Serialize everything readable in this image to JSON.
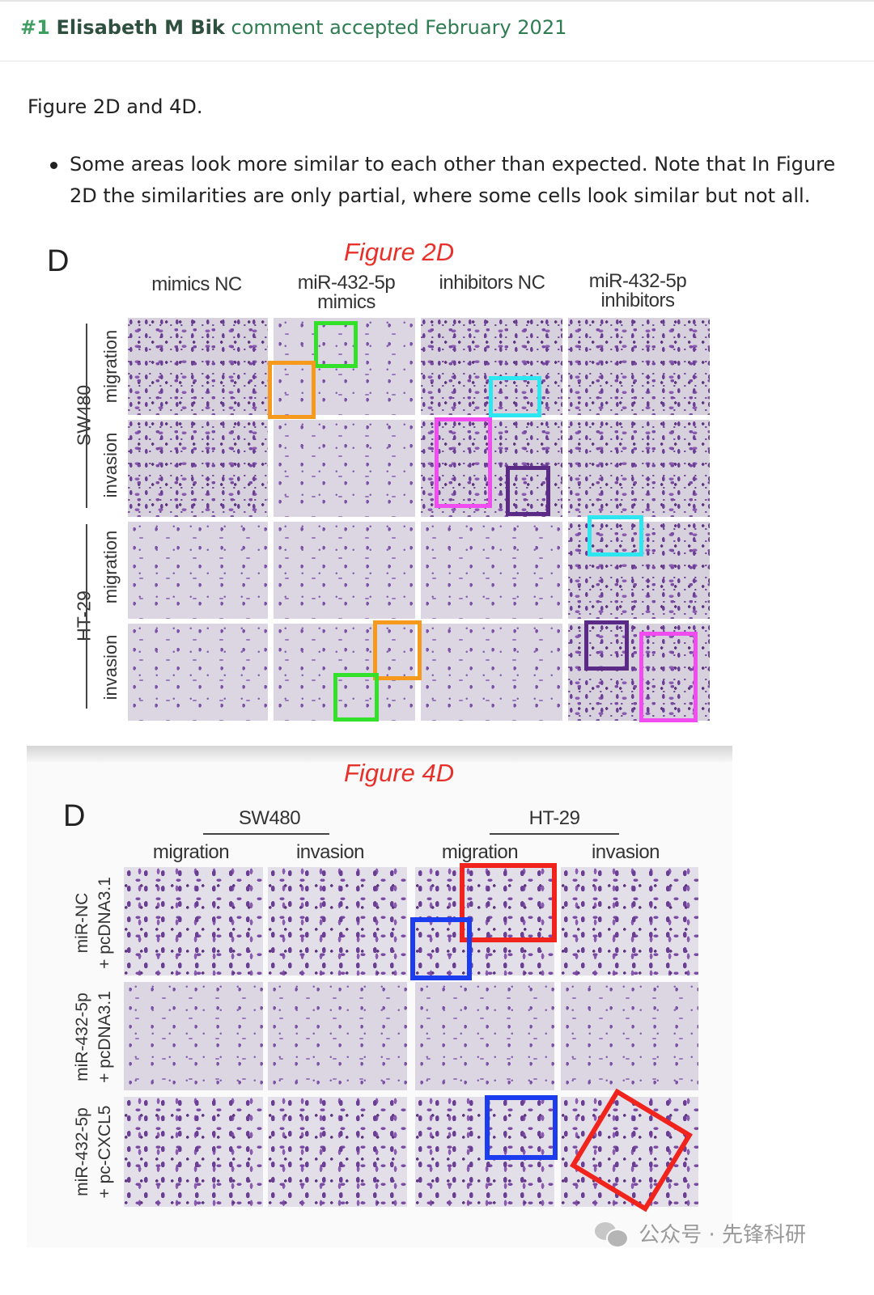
{
  "comment": {
    "number": "#1",
    "author": "Elisabeth M Bik",
    "status": "comment accepted February 2021"
  },
  "intro": "Figure 2D and 4D.",
  "bullet": "Some areas look more similar to each other than expected. Note that In Figure 2D the similarities are only partial, where some cells look similar but not all.",
  "figure2d": {
    "title": "Figure 2D",
    "panel_letter": "D",
    "columns": [
      {
        "line1": "mimics NC",
        "line2": ""
      },
      {
        "line1": "miR-432-5p",
        "line2": "mimics"
      },
      {
        "line1": "inhibitors NC",
        "line2": ""
      },
      {
        "line1": "miR-432-5p",
        "line2": "inhibitors"
      }
    ],
    "groups": [
      "SW480",
      "HT-29"
    ],
    "rows": [
      "migration",
      "invasion",
      "migration",
      "invasion"
    ]
  },
  "figure4d": {
    "title": "Figure 4D",
    "panel_letter": "D",
    "groups": [
      "SW480",
      "HT-29"
    ],
    "columns": [
      "migration",
      "invasion",
      "migration",
      "invasion"
    ],
    "rows": [
      {
        "line1": "miR-NC",
        "line2": "+ pcDNA3.1"
      },
      {
        "line1": "miR-432-5p",
        "line2": "+ pcDNA3.1"
      },
      {
        "line1": "miR-432-5p",
        "line2": "+ pc-CXCL5"
      }
    ]
  },
  "annotation_colors": {
    "green": "#33e02a",
    "orange": "#f59a1c",
    "cyan": "#2ee6f0",
    "magenta": "#f04cf0",
    "purple": "#5a2a86",
    "red": "#f0241c",
    "blue": "#1c3cf0"
  },
  "watermark": "公众号 · 先锋科研",
  "icons": {
    "watermark": "wechat-icon"
  }
}
